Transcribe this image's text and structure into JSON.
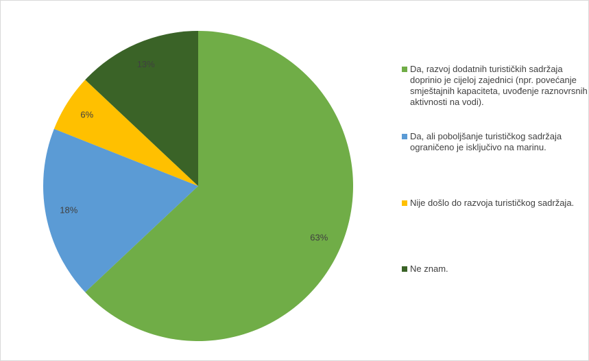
{
  "chart_data": {
    "type": "pie",
    "categories": [
      "Da, razvoj dodatnih turističkih sadržaja doprinio je cijeloj zajednici (npr. povećanje smještajnih kapaciteta, uvođenje raznovrsnih aktivnosti na vodi).",
      "Da, ali poboljšanje turističkog sadržaja ograničeno je isključivo na marinu.",
      "Nije došlo do razvoja turističkog sadržaja.",
      "Ne znam."
    ],
    "values": [
      63,
      18,
      6,
      13
    ],
    "value_labels": [
      "63%",
      "18%",
      "6%",
      "13%"
    ],
    "colors": [
      "#70ad47",
      "#5b9bd5",
      "#ffc000",
      "#3a6327"
    ],
    "legend": "right"
  }
}
